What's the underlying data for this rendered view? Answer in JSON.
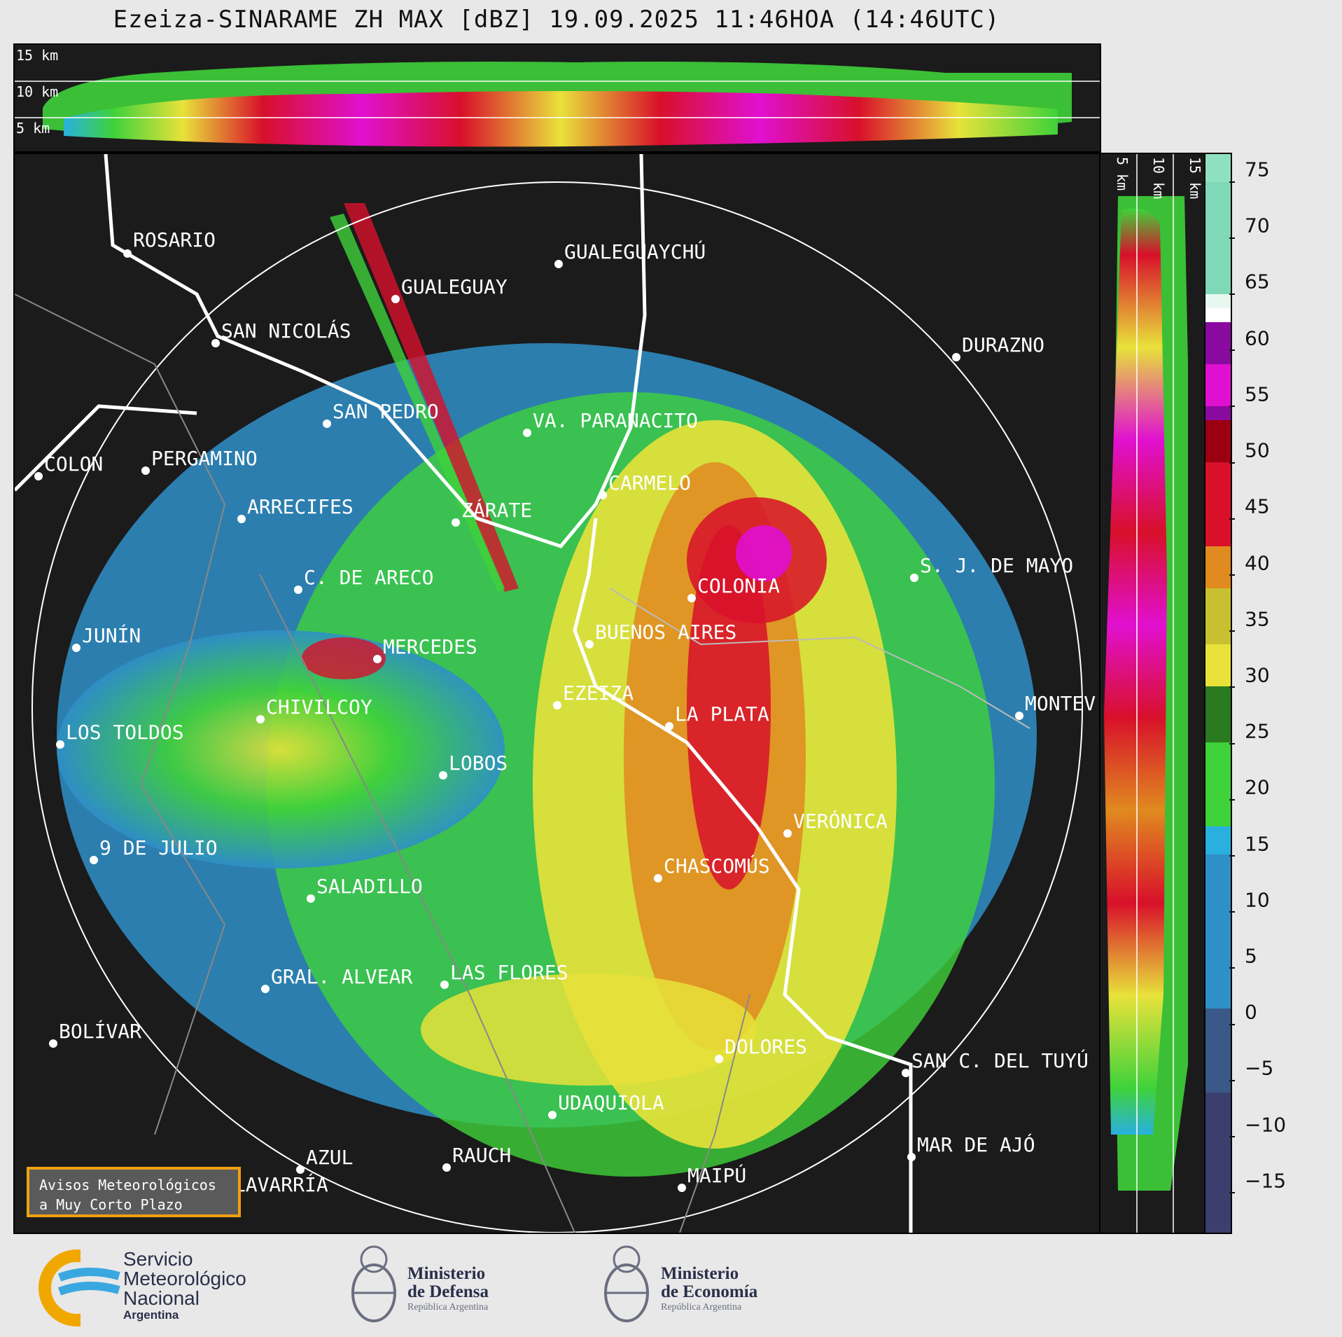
{
  "title": "Ezeiza-SINARAME ZH MAX [dBZ] 19.09.2025 11:46HOA (14:46UTC)",
  "top_panel": {
    "height_labels": [
      "15 km",
      "10 km",
      "5 km"
    ]
  },
  "side_panel": {
    "height_labels": [
      "5 km",
      "10 km",
      "15 km"
    ]
  },
  "colorbar": {
    "unit": "dBZ",
    "ticks": [
      "75",
      "70",
      "65",
      "60",
      "55",
      "50",
      "45",
      "40",
      "35",
      "30",
      "25",
      "20",
      "15",
      "10",
      "5",
      "0",
      "−5",
      "−10",
      "−15"
    ],
    "range": [
      -19.5,
      76.5
    ],
    "colors": {
      "low": "#3a3f6e",
      "blue": "#2f8fc8",
      "cyan": "#29b0df",
      "green": "#3fd23a",
      "dark_green": "#2a7a22",
      "yellow": "#e8e23a",
      "orange": "#e08a20",
      "red": "#d8102a",
      "dark_red": "#9a0010",
      "magenta": "#e010d0",
      "purple": "#8a0aa0",
      "white": "#ffffff",
      "mint": "#7fd8b8"
    }
  },
  "cities": [
    "ROSARIO",
    "GUALEGUAYCHÚ",
    "GUALEGUAY",
    "SAN NICOLÁS",
    "DURAZNO",
    "SAN PEDRO",
    "VA. PARANACITO",
    "COLON",
    "PERGAMINO",
    "CARMELO",
    "ARRECIFES",
    "ZÁRATE",
    "S. J. DE MAYO",
    "C. DE ARECO",
    "COLONIA",
    "JUNÍN",
    "BUENOS AIRES",
    "MERCEDES",
    "EZEIZA",
    "MONTEV",
    "CHIVILCOY",
    "LA PLATA",
    "LOS TOLDOS",
    "LOBOS",
    "VERÓNICA",
    "9 DE JULIO",
    "CHASCOMÚS",
    "SALADILLO",
    "GRAL. ALVEAR",
    "LAS FLORES",
    "BOLÍVAR",
    "DOLORES",
    "SAN C. DEL TUYÚ",
    "UDAQUIOLA",
    "RAUCH",
    "AZUL",
    "MAR DE AJÓ",
    "MAIPÚ",
    "OLAVARRÍA"
  ],
  "warning_box": {
    "line1": "Avisos Meteorológicos",
    "line2": "a Muy Corto Plazo"
  },
  "footer": {
    "smn": {
      "line1": "Servicio",
      "line2": "Meteorológico",
      "line3": "Nacional",
      "line4": "Argentina"
    },
    "defensa": {
      "line1": "Ministerio",
      "line2": "de Defensa",
      "line3": "República Argentina"
    },
    "economia": {
      "line1": "Ministerio",
      "line2": "de Economía",
      "line3": "República Argentina"
    }
  }
}
